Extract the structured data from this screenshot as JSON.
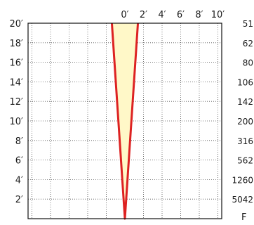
{
  "chart_data": {
    "type": "line",
    "top_ticks": [
      "0′",
      "2′",
      "4′",
      "6′",
      "8′",
      "10′"
    ],
    "top_range": [
      0,
      10
    ],
    "left_ticks": [
      "20′",
      "18′",
      "16′",
      "14′",
      "12′",
      "10′",
      "8′",
      "6′",
      "4′",
      "2′"
    ],
    "left_range": [
      0,
      20
    ],
    "right_labels": [
      "51",
      "62",
      "80",
      "106",
      "142",
      "200",
      "316",
      "562",
      "1260",
      "5042"
    ],
    "cut_off_label": "F",
    "grid": true,
    "series": [
      {
        "points": [
          [
            -1.4,
            20
          ],
          [
            0,
            0
          ],
          [
            1.4,
            20
          ]
        ],
        "color": "#dd2222",
        "fill": "#fff8c8"
      }
    ]
  }
}
